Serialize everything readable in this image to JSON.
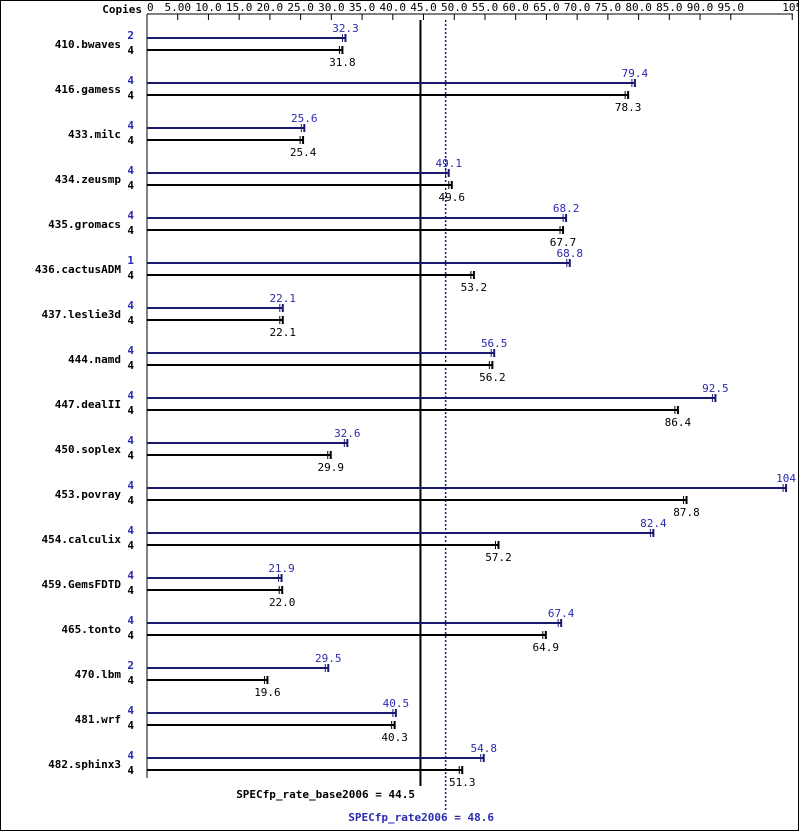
{
  "chart_data": {
    "type": "bar",
    "header": "Copies",
    "ticks": [
      "0",
      "5.00",
      "10.0",
      "15.0",
      "20.0",
      "25.0",
      "30.0",
      "35.0",
      "40.0",
      "45.0",
      "50.0",
      "55.0",
      "60.0",
      "65.0",
      "70.0",
      "75.0",
      "80.0",
      "85.0",
      "90.0",
      "95.0",
      "105"
    ],
    "tick_values": [
      0,
      5,
      10,
      15,
      20,
      25,
      30,
      35,
      40,
      45,
      50,
      55,
      60,
      65,
      70,
      75,
      80,
      85,
      90,
      95,
      105
    ],
    "xlim": [
      0,
      105
    ],
    "colors": {
      "peak": "#191970",
      "base": "#000000",
      "peak_text": "#2b2bb0"
    },
    "benchmarks": [
      {
        "name": "410.bwaves",
        "peak_copies": "2",
        "peak": 32.3,
        "peak_label": "32.3",
        "base_copies": "4",
        "base": 31.8,
        "base_label": "31.8"
      },
      {
        "name": "416.gamess",
        "peak_copies": "4",
        "peak": 79.4,
        "peak_label": "79.4",
        "base_copies": "4",
        "base": 78.3,
        "base_label": "78.3"
      },
      {
        "name": "433.milc",
        "peak_copies": "4",
        "peak": 25.6,
        "peak_label": "25.6",
        "base_copies": "4",
        "base": 25.4,
        "base_label": "25.4"
      },
      {
        "name": "434.zeusmp",
        "peak_copies": "4",
        "peak": 49.1,
        "peak_label": "49.1",
        "base_copies": "4",
        "base": 49.6,
        "base_label": "49.6"
      },
      {
        "name": "435.gromacs",
        "peak_copies": "4",
        "peak": 68.2,
        "peak_label": "68.2",
        "base_copies": "4",
        "base": 67.7,
        "base_label": "67.7"
      },
      {
        "name": "436.cactusADM",
        "peak_copies": "1",
        "peak": 68.8,
        "peak_label": "68.8",
        "base_copies": "4",
        "base": 53.2,
        "base_label": "53.2"
      },
      {
        "name": "437.leslie3d",
        "peak_copies": "4",
        "peak": 22.1,
        "peak_label": "22.1",
        "base_copies": "4",
        "base": 22.1,
        "base_label": "22.1"
      },
      {
        "name": "444.namd",
        "peak_copies": "4",
        "peak": 56.5,
        "peak_label": "56.5",
        "base_copies": "4",
        "base": 56.2,
        "base_label": "56.2"
      },
      {
        "name": "447.dealII",
        "peak_copies": "4",
        "peak": 92.5,
        "peak_label": "92.5",
        "base_copies": "4",
        "base": 86.4,
        "base_label": "86.4"
      },
      {
        "name": "450.soplex",
        "peak_copies": "4",
        "peak": 32.6,
        "peak_label": "32.6",
        "base_copies": "4",
        "base": 29.9,
        "base_label": "29.9"
      },
      {
        "name": "453.povray",
        "peak_copies": "4",
        "peak": 104,
        "peak_label": "104",
        "base_copies": "4",
        "base": 87.8,
        "base_label": "87.8"
      },
      {
        "name": "454.calculix",
        "peak_copies": "4",
        "peak": 82.4,
        "peak_label": "82.4",
        "base_copies": "4",
        "base": 57.2,
        "base_label": "57.2"
      },
      {
        "name": "459.GemsFDTD",
        "peak_copies": "4",
        "peak": 21.9,
        "peak_label": "21.9",
        "base_copies": "4",
        "base": 22.0,
        "base_label": "22.0"
      },
      {
        "name": "465.tonto",
        "peak_copies": "4",
        "peak": 67.4,
        "peak_label": "67.4",
        "base_copies": "4",
        "base": 64.9,
        "base_label": "64.9"
      },
      {
        "name": "470.lbm",
        "peak_copies": "2",
        "peak": 29.5,
        "peak_label": "29.5",
        "base_copies": "4",
        "base": 19.6,
        "base_label": "19.6"
      },
      {
        "name": "481.wrf",
        "peak_copies": "4",
        "peak": 40.5,
        "peak_label": "40.5",
        "base_copies": "4",
        "base": 40.3,
        "base_label": "40.3"
      },
      {
        "name": "482.sphinx3",
        "peak_copies": "4",
        "peak": 54.8,
        "peak_label": "54.8",
        "base_copies": "4",
        "base": 51.3,
        "base_label": "51.3"
      }
    ],
    "base_summary": {
      "label": "SPECfp_rate_base2006 = 44.5",
      "value": 44.5
    },
    "peak_summary": {
      "label": "SPECfp_rate2006 = 48.6",
      "value": 48.6
    }
  }
}
